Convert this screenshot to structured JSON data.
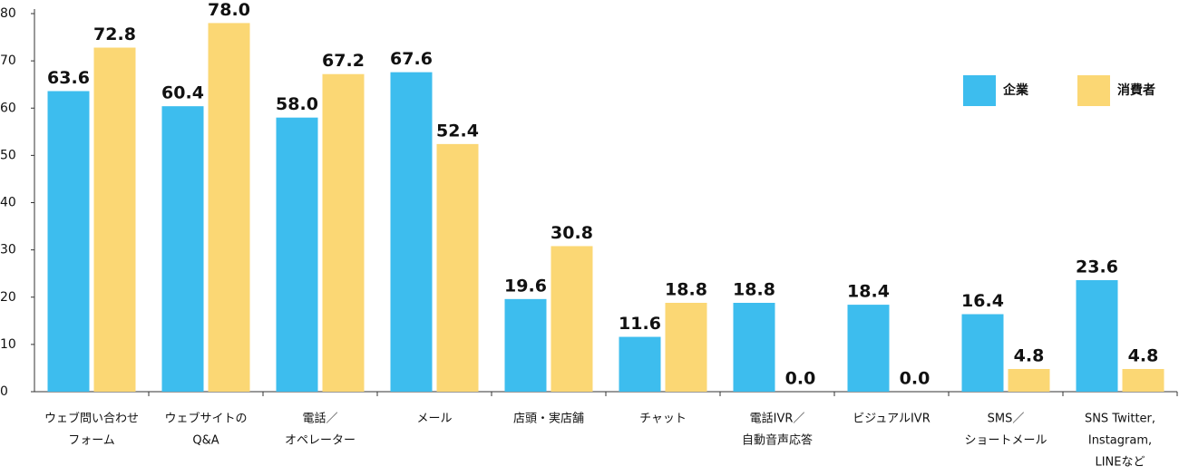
{
  "chart_data": {
    "type": "bar",
    "categories": [
      [
        "ウェブ問い合わせ",
        "フォーム"
      ],
      [
        "ウェブサイトの",
        "Q&A"
      ],
      [
        "電話／",
        "オペレーター"
      ],
      [
        "メール"
      ],
      [
        "店頭・実店舗"
      ],
      [
        "チャット"
      ],
      [
        "電話IVR／",
        "自動音声応答"
      ],
      [
        "ビジュアルIVR"
      ],
      [
        "SMS／",
        "ショートメール"
      ],
      [
        "SNS Twitter,",
        "Instagram,",
        "LINEなど"
      ]
    ],
    "series": [
      {
        "name": "企業",
        "color": "#3dbdee",
        "values": [
          63.6,
          60.4,
          58.0,
          67.6,
          19.6,
          11.6,
          18.8,
          18.4,
          16.4,
          23.6
        ],
        "value_labels": [
          "63.6",
          "60.4",
          "58.0",
          "67.6",
          "19.6",
          "11.6",
          "18.8",
          "18.4",
          "16.4",
          "23.6"
        ]
      },
      {
        "name": "消費者",
        "color": "#fbd774",
        "values": [
          72.8,
          78.0,
          67.2,
          52.4,
          30.8,
          18.8,
          0.0,
          0.0,
          4.8,
          4.8
        ],
        "value_labels": [
          "72.8",
          "78.0",
          "67.2",
          "52.4",
          "30.8",
          "18.8",
          "0.0",
          "0.0",
          "4.8",
          "4.8"
        ]
      }
    ],
    "ylim": [
      0,
      80
    ],
    "yticks": [
      0,
      10,
      20,
      30,
      40,
      50,
      60,
      70,
      80
    ],
    "legend": "upper right"
  }
}
